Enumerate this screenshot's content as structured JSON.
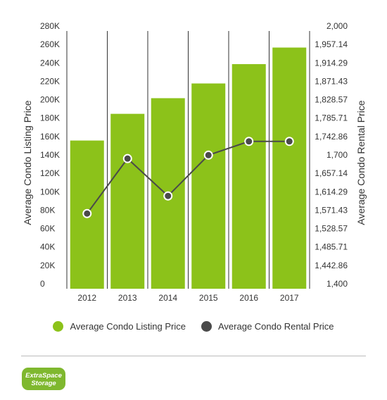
{
  "chart_data": {
    "type": "bar+line",
    "categories": [
      "2012",
      "2013",
      "2014",
      "2015",
      "2016",
      "2017"
    ],
    "series": [
      {
        "name": "Average Condo Listing Price",
        "type": "bar",
        "axis": "left",
        "values": [
          161000,
          190000,
          207000,
          223000,
          244000,
          262000
        ]
      },
      {
        "name": "Average Condo Rental Price",
        "type": "line",
        "axis": "right",
        "values": [
          1575,
          1703,
          1616,
          1711,
          1743,
          1743
        ]
      }
    ],
    "left_axis": {
      "label": "Average Condo Listing Price",
      "range": [
        0,
        280000
      ],
      "ticks": [
        "0",
        "20K",
        "40K",
        "60K",
        "80K",
        "100K",
        "120K",
        "140K",
        "160K",
        "180K",
        "200K",
        "220K",
        "240K",
        "260K",
        "280K"
      ]
    },
    "right_axis": {
      "label": "Average Condo Rental Price",
      "range": [
        1400,
        2000
      ],
      "ticks": [
        "1,400",
        "1,442.86",
        "1,485.71",
        "1,528.57",
        "1,571.43",
        "1,614.29",
        "1,657.14",
        "1,700",
        "1,742.86",
        "1,785.71",
        "1,828.57",
        "1,871.43",
        "1,914.29",
        "1,957.14",
        "2,000"
      ]
    },
    "grid": "vertical-only",
    "legend": "bottom-center",
    "colors": {
      "bar": "#8cc21a",
      "line": "#4a4a4a",
      "grid": "#333333"
    }
  },
  "logo": {
    "line1": "ExtraSpace",
    "line2": "Storage",
    "color": "#7fb82f"
  }
}
